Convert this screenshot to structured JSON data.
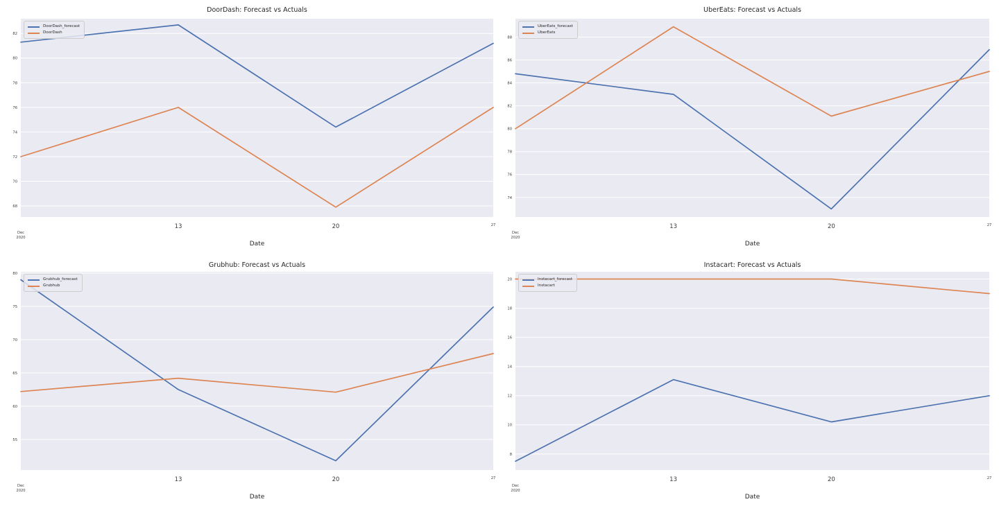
{
  "figure": {
    "background": "#ffffff",
    "layout": "2x2 line charts, weekly forecast vs actuals per delivery platform"
  },
  "style": {
    "plot_bg": "#eaeaf2",
    "grid_color": "#ffffff",
    "title_color": "#262626",
    "tick_color": "#3b3b3b",
    "forecast_color": "#4c72b0",
    "actual_color": "#dd8452"
  },
  "chart_data": [
    {
      "type": "line",
      "title": "DoorDash: Forecast vs Actuals",
      "xlabel": "Date",
      "ylabel": "",
      "x": [
        "Dec 6 2020",
        "Dec 13 2020",
        "Dec 20 2020",
        "Dec 27 2020"
      ],
      "x_ticks": [
        {
          "pos": 0,
          "label": "Dec\n2020",
          "size": "small"
        },
        {
          "pos": 0.3333,
          "label": "13",
          "size": "normal"
        },
        {
          "pos": 0.6667,
          "label": "20",
          "size": "normal"
        },
        {
          "pos": 1,
          "label": "27",
          "size": "small"
        }
      ],
      "y_ticks": [
        82,
        80,
        78,
        76,
        74,
        72,
        70,
        68
      ],
      "ylim": [
        67.1,
        83.2
      ],
      "grid": "horizontal",
      "legend_position": "upper-left",
      "series": [
        {
          "name": "DoorDash_forecast",
          "color": "#4c72b0",
          "values": [
            81.3,
            82.7,
            74.4,
            81.2
          ]
        },
        {
          "name": "DoorDash",
          "color": "#dd8452",
          "values": [
            72.0,
            76.0,
            67.9,
            76.0
          ]
        }
      ]
    },
    {
      "type": "line",
      "title": "UberEats: Forecast vs Actuals",
      "xlabel": "Date",
      "ylabel": "",
      "x": [
        "Dec 6 2020",
        "Dec 13 2020",
        "Dec 20 2020",
        "Dec 27 2020"
      ],
      "x_ticks": [
        {
          "pos": 0,
          "label": "Dec\n2020",
          "size": "small"
        },
        {
          "pos": 0.3333,
          "label": "13",
          "size": "normal"
        },
        {
          "pos": 0.6667,
          "label": "20",
          "size": "normal"
        },
        {
          "pos": 1,
          "label": "27",
          "size": "small"
        }
      ],
      "y_ticks": [
        88,
        86,
        84,
        82,
        80,
        78,
        76,
        74
      ],
      "ylim": [
        72.3,
        89.6
      ],
      "grid": "horizontal",
      "legend_position": "upper-left",
      "series": [
        {
          "name": "UberEats_forecast",
          "color": "#4c72b0",
          "values": [
            84.8,
            83.0,
            73.0,
            86.9
          ]
        },
        {
          "name": "UberEats",
          "color": "#dd8452",
          "values": [
            80.0,
            88.9,
            81.1,
            85.0
          ]
        }
      ]
    },
    {
      "type": "line",
      "title": "Grubhub: Forecast vs Actuals",
      "xlabel": "Date",
      "ylabel": "",
      "x": [
        "Dec 6 2020",
        "Dec 13 2020",
        "Dec 20 2020",
        "Dec 27 2020"
      ],
      "x_ticks": [
        {
          "pos": 0,
          "label": "Dec\n2020",
          "size": "small"
        },
        {
          "pos": 0.3333,
          "label": "13",
          "size": "normal"
        },
        {
          "pos": 0.6667,
          "label": "20",
          "size": "normal"
        },
        {
          "pos": 1,
          "label": "27",
          "size": "small"
        }
      ],
      "y_ticks": [
        80,
        75,
        70,
        65,
        60,
        55
      ],
      "ylim": [
        50.4,
        80.2
      ],
      "grid": "horizontal",
      "legend_position": "upper-left",
      "series": [
        {
          "name": "Grubhub_forecast",
          "color": "#4c72b0",
          "values": [
            79.0,
            62.5,
            51.8,
            74.9
          ]
        },
        {
          "name": "Grubhub",
          "color": "#dd8452",
          "values": [
            62.2,
            64.2,
            62.1,
            67.9
          ]
        }
      ]
    },
    {
      "type": "line",
      "title": "Instacart: Forecast vs Actuals",
      "xlabel": "Date",
      "ylabel": "",
      "x": [
        "Dec 6 2020",
        "Dec 13 2020",
        "Dec 20 2020",
        "Dec 27 2020"
      ],
      "x_ticks": [
        {
          "pos": 0,
          "label": "Dec\n2020",
          "size": "small"
        },
        {
          "pos": 0.3333,
          "label": "13",
          "size": "normal"
        },
        {
          "pos": 0.6667,
          "label": "20",
          "size": "normal"
        },
        {
          "pos": 1,
          "label": "27",
          "size": "small"
        }
      ],
      "y_ticks": [
        20,
        18,
        16,
        14,
        12,
        10,
        8
      ],
      "ylim": [
        6.9,
        20.5
      ],
      "grid": "horizontal",
      "legend_position": "upper-left",
      "series": [
        {
          "name": "Instacart_forecast",
          "color": "#4c72b0",
          "values": [
            7.5,
            13.1,
            10.2,
            12.0
          ]
        },
        {
          "name": "Instacart",
          "color": "#dd8452",
          "values": [
            20.0,
            20.0,
            20.0,
            19.0
          ]
        }
      ]
    }
  ]
}
